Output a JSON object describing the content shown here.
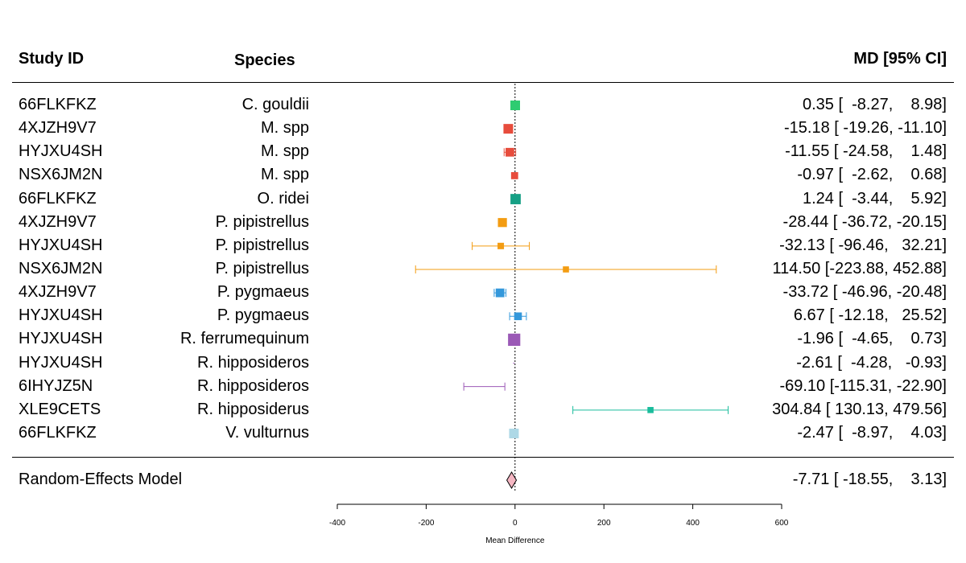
{
  "headers": {
    "study": "Study ID",
    "species": "Species",
    "effect": "MD [95% CI]"
  },
  "chart_data": {
    "type": "forest",
    "xlabel": "Mean Difference",
    "xlim": [
      -400,
      600
    ],
    "xticks": [
      -400,
      -200,
      0,
      200,
      400,
      600
    ],
    "reference_line": 0,
    "rows": [
      {
        "study": "66FLKFKZ",
        "species": "C. gouldii",
        "md": 0.35,
        "lo": -8.27,
        "hi": 8.98,
        "ci_text": "0.35 [  -8.27,    8.98]",
        "color": "#2ecc71",
        "weight": 1.0
      },
      {
        "study": "4XJZH9V7",
        "species": "M. spp",
        "md": -15.18,
        "lo": -19.26,
        "hi": -11.1,
        "ci_text": "-15.18 [ -19.26, -11.10]",
        "color": "#e74c3c",
        "weight": 1.0
      },
      {
        "study": "HYJXU4SH",
        "species": "M. spp",
        "md": -11.55,
        "lo": -24.58,
        "hi": 1.48,
        "ci_text": "-11.55 [ -24.58,    1.48]",
        "color": "#e74c3c",
        "weight": 0.85
      },
      {
        "study": "NSX6JM2N",
        "species": "M. spp",
        "md": -0.97,
        "lo": -2.62,
        "hi": 0.68,
        "ci_text": "-0.97 [  -2.62,    0.68]",
        "color": "#e74c3c",
        "weight": 0.6
      },
      {
        "study": "66FLKFKZ",
        "species": "O. ridei",
        "md": 1.24,
        "lo": -3.44,
        "hi": 5.92,
        "ci_text": "1.24 [  -3.44,    5.92]",
        "color": "#16a085",
        "weight": 1.1
      },
      {
        "study": "4XJZH9V7",
        "species": "P. pipistrellus",
        "md": -28.44,
        "lo": -36.72,
        "hi": -20.15,
        "ci_text": "-28.44 [ -36.72, -20.15]",
        "color": "#f39c12",
        "weight": 0.9
      },
      {
        "study": "HYJXU4SH",
        "species": "P. pipistrellus",
        "md": -32.13,
        "lo": -96.46,
        "hi": 32.21,
        "ci_text": "-32.13 [ -96.46,   32.21]",
        "color": "#f39c12",
        "weight": 0.5
      },
      {
        "study": "NSX6JM2N",
        "species": "P. pipistrellus",
        "md": 114.5,
        "lo": -223.88,
        "hi": 452.88,
        "ci_text": "114.50 [-223.88, 452.88]",
        "color": "#f39c12",
        "weight": 0.45
      },
      {
        "study": "4XJZH9V7",
        "species": "P. pygmaeus",
        "md": -33.72,
        "lo": -46.96,
        "hi": -20.48,
        "ci_text": "-33.72 [ -46.96, -20.48]",
        "color": "#3498db",
        "weight": 0.85
      },
      {
        "study": "HYJXU4SH",
        "species": "P. pygmaeus",
        "md": 6.67,
        "lo": -12.18,
        "hi": 25.52,
        "ci_text": "6.67 [ -12.18,   25.52]",
        "color": "#3498db",
        "weight": 0.7
      },
      {
        "study": "HYJXU4SH",
        "species": "R. ferrumequinum",
        "md": -1.96,
        "lo": -4.65,
        "hi": 0.73,
        "ci_text": "-1.96 [  -4.65,    0.73]",
        "color": "#9b59b6",
        "weight": 1.4
      },
      {
        "study": "HYJXU4SH",
        "species": "R. hipposideros",
        "md": -2.61,
        "lo": -4.28,
        "hi": -0.93,
        "ci_text": "-2.61 [  -4.28,   -0.93]",
        "color": "#9b59b6",
        "weight": 0.0
      },
      {
        "study": "6IHYJZ5N",
        "species": "R. hipposideros",
        "md": -69.1,
        "lo": -115.31,
        "hi": -22.9,
        "ci_text": "-69.10 [-115.31, -22.90]",
        "color": "#9b59b6",
        "weight": 0.0
      },
      {
        "study": "XLE9CETS",
        "species": "R. hipposiderus",
        "md": 304.84,
        "lo": 130.13,
        "hi": 479.56,
        "ci_text": "304.84 [ 130.13, 479.56]",
        "color": "#1abc9c",
        "weight": 0.45
      },
      {
        "study": "66FLKFKZ",
        "species": "V. vulturnus",
        "md": -2.47,
        "lo": -8.97,
        "hi": 4.03,
        "ci_text": "-2.47 [  -8.97,    4.03]",
        "color": "#add8e6",
        "weight": 1.0
      }
    ],
    "summary": {
      "label": "Random-Effects Model",
      "md": -7.71,
      "lo": -18.55,
      "hi": 3.13,
      "ci_text": "-7.71 [ -18.55,    3.13]",
      "color": "#f4b6c2"
    }
  }
}
